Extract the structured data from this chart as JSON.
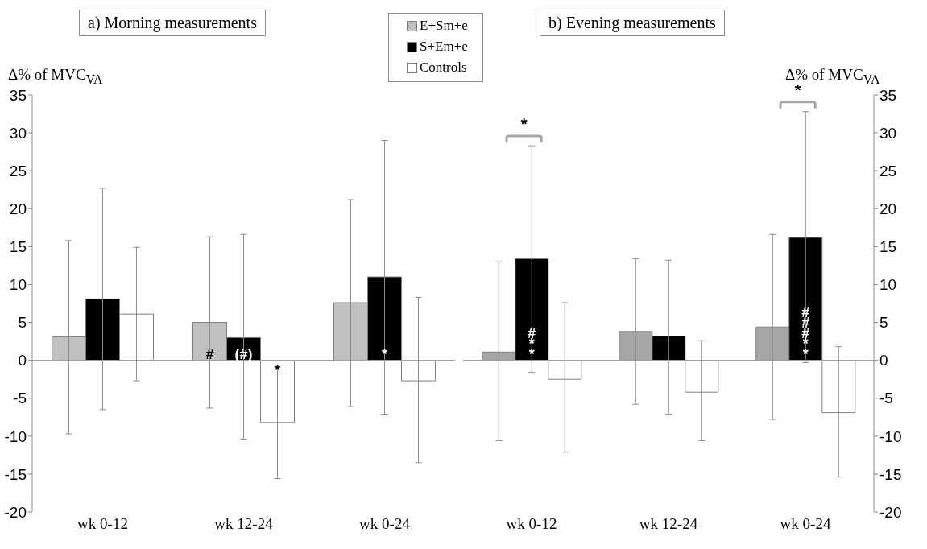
{
  "chart_data": [
    {
      "type": "bar",
      "title": "a) Morning measurements",
      "ylabel": "Δ% of MVC$_{VA}$",
      "categories": [
        "wk 0-12",
        "wk 12-24",
        "wk 0-24"
      ],
      "ylim": [
        -20,
        35
      ],
      "yticks": [
        -20,
        -15,
        -10,
        -5,
        0,
        5,
        10,
        15,
        20,
        25,
        30,
        35
      ],
      "legend": "top right",
      "series": [
        {
          "name": "E+Sm+e",
          "color": "#c0c0c0",
          "values": [
            3.1,
            5.0,
            7.6
          ],
          "errors": [
            [
              -9.7,
              15.8
            ],
            [
              -6.3,
              16.3
            ],
            [
              -6.1,
              21.2
            ]
          ],
          "value_labels": [
            null,
            "#",
            null
          ]
        },
        {
          "name": "S+Em+e",
          "color": "#000000",
          "values": [
            8.1,
            3.0,
            11.0
          ],
          "errors": [
            [
              -6.5,
              22.7
            ],
            [
              -10.4,
              16.6
            ],
            [
              -7.1,
              29.0
            ]
          ],
          "value_labels": [
            null,
            "(#)",
            "*"
          ]
        },
        {
          "name": "Controls",
          "color": "#ffffff",
          "values": [
            6.1,
            -8.2,
            -2.7
          ],
          "errors": [
            [
              -2.7,
              14.9
            ],
            [
              -15.6,
              -0.9
            ],
            [
              -13.5,
              8.3
            ]
          ],
          "value_labels": [
            null,
            "*",
            null
          ]
        }
      ]
    },
    {
      "type": "bar",
      "title": "b) Evening measurements",
      "y2label": "Δ% of MVC$_{VA}$",
      "categories": [
        "wk 0-12",
        "wk 12-24",
        "wk 0-24"
      ],
      "y2lim": [
        -20,
        35
      ],
      "y2ticks": [
        -20,
        -15,
        -10,
        -5,
        0,
        5,
        10,
        15,
        20,
        25,
        30,
        35
      ],
      "annotations": [
        "*",
        "*"
      ],
      "series": [
        {
          "color": "#a6a6a6",
          "axis": "y2",
          "values": [
            1.1,
            3.8,
            4.4
          ],
          "errors": [
            [
              -10.6,
              13.0
            ],
            [
              -5.8,
              13.4
            ],
            [
              -7.8,
              16.6
            ]
          ]
        },
        {
          "color": "#000000",
          "axis": "y2",
          "values": [
            13.4,
            3.2,
            16.2
          ],
          "errors": [
            [
              -1.6,
              28.3
            ],
            [
              -7.1,
              13.2
            ],
            [
              -0.3,
              32.8
            ]
          ],
          "value_labels": [
            "#**",
            null,
            "###**"
          ]
        },
        {
          "color": "#ffffff",
          "axis": "y2",
          "values": [
            -2.5,
            -4.2,
            -6.9
          ],
          "errors": [
            [
              -12.1,
              7.6
            ],
            [
              -10.6,
              2.6
            ],
            [
              -15.4,
              1.8
            ]
          ]
        }
      ]
    }
  ]
}
